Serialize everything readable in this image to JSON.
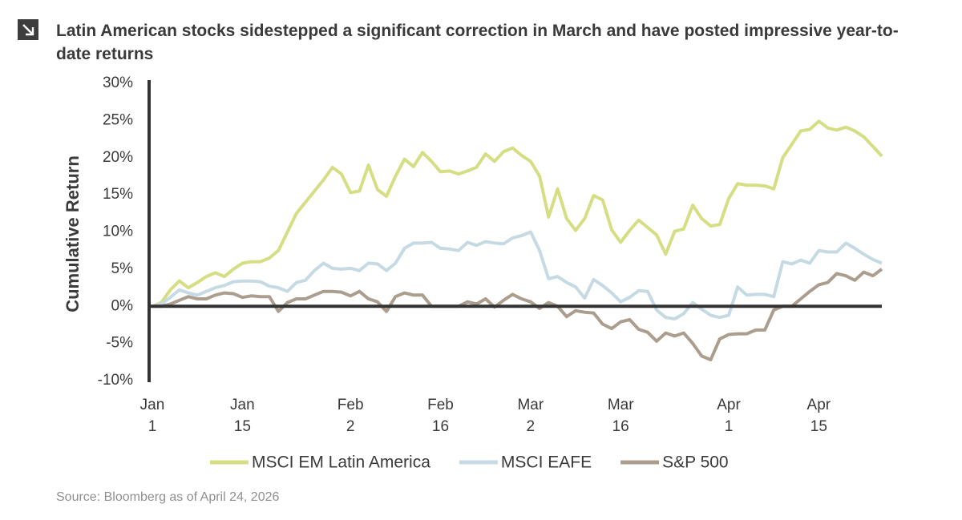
{
  "chart_data": {
    "type": "line",
    "title": "Latin American stocks sidestepped a significant correction in March and have posted impressive year-to-date returns",
    "ylabel": "Cumulative Return",
    "source": "Source: Bloomberg as of April 24, 2026",
    "legend": "bottom",
    "categories": [
      "Jan 1",
      null,
      null,
      null,
      null,
      null,
      null,
      null,
      null,
      null,
      "Jan 15",
      null,
      null,
      null,
      null,
      null,
      null,
      null,
      null,
      null,
      null,
      null,
      "Feb 2",
      null,
      null,
      null,
      null,
      null,
      null,
      null,
      null,
      null,
      "Feb 16",
      null,
      null,
      null,
      null,
      null,
      null,
      null,
      null,
      null,
      "Mar 2",
      null,
      null,
      null,
      null,
      null,
      null,
      null,
      null,
      null,
      "Mar 16",
      null,
      null,
      null,
      null,
      null,
      null,
      null,
      null,
      null,
      null,
      null,
      "Apr 1",
      null,
      null,
      null,
      null,
      null,
      null,
      null,
      null,
      null,
      "Apr 15",
      null,
      null,
      null,
      null,
      null,
      null,
      null
    ],
    "ylim": [
      -10,
      30
    ],
    "yticks": [
      {
        "value": -10,
        "label": "-10%"
      },
      {
        "value": -5,
        "label": "-5%"
      },
      {
        "value": 0,
        "label": "0%"
      },
      {
        "value": 5,
        "label": "5%"
      },
      {
        "value": 10,
        "label": "10%"
      },
      {
        "value": 15,
        "label": "15%"
      },
      {
        "value": 20,
        "label": "20%"
      },
      {
        "value": 25,
        "label": "25%"
      },
      {
        "value": 30,
        "label": "30%"
      }
    ],
    "series": [
      {
        "name": "MSCI EM Latin America",
        "color": "#d6de84",
        "values": [
          0,
          0.5,
          2.2,
          3.4,
          2.5,
          3.2,
          4.0,
          4.5,
          4.0,
          5.0,
          5.8,
          6.0,
          6.0,
          6.5,
          7.5,
          10.0,
          12.5,
          14.0,
          15.5,
          17.0,
          18.7,
          17.8,
          15.3,
          15.5,
          19.0,
          15.7,
          14.8,
          17.5,
          19.8,
          18.8,
          20.7,
          19.5,
          18.1,
          18.2,
          17.8,
          18.2,
          18.7,
          20.5,
          19.5,
          20.8,
          21.3,
          20.3,
          19.5,
          17.5,
          12.0,
          15.8,
          11.8,
          10.2,
          11.8,
          14.9,
          14.3,
          10.3,
          8.6,
          10.2,
          11.6,
          10.6,
          9.6,
          7.0,
          10.1,
          10.4,
          13.6,
          11.8,
          10.8,
          11.0,
          14.5,
          16.5,
          16.3,
          16.3,
          16.2,
          15.8,
          20.0,
          21.8,
          23.6,
          23.8,
          24.9,
          24.0,
          23.7,
          24.1,
          23.6,
          22.8,
          21.5,
          20.2
        ]
      },
      {
        "name": "MSCI EAFE",
        "color": "#c6dae4",
        "values": [
          0,
          0.3,
          1.2,
          2.2,
          1.8,
          1.5,
          2.0,
          2.5,
          2.8,
          3.3,
          3.4,
          3.4,
          3.3,
          2.7,
          2.5,
          2.0,
          3.2,
          3.5,
          4.8,
          5.8,
          5.1,
          5.0,
          5.1,
          4.8,
          5.8,
          5.7,
          4.8,
          5.8,
          7.8,
          8.5,
          8.5,
          8.6,
          7.8,
          7.7,
          7.5,
          8.6,
          8.2,
          8.7,
          8.5,
          8.4,
          9.2,
          9.5,
          10.0,
          7.5,
          3.7,
          4.0,
          3.2,
          2.6,
          1.1,
          3.6,
          2.8,
          1.8,
          0.6,
          1.2,
          2.1,
          2.0,
          -0.5,
          -1.5,
          -1.7,
          -1.0,
          0.5,
          -0.4,
          -1.2,
          -1.5,
          -1.2,
          2.6,
          1.5,
          1.6,
          1.6,
          1.3,
          6.0,
          5.7,
          6.2,
          5.8,
          7.5,
          7.3,
          7.3,
          8.5,
          7.8,
          7.0,
          6.3,
          5.8
        ]
      },
      {
        "name": "S&P 500",
        "color": "#ac9e8e",
        "values": [
          0,
          0,
          0.3,
          0.8,
          1.3,
          1.0,
          1.0,
          1.5,
          1.8,
          1.7,
          1.2,
          1.4,
          1.3,
          1.3,
          -0.7,
          0.5,
          1.0,
          1.0,
          1.5,
          2.0,
          2.0,
          1.9,
          1.4,
          2.0,
          1.0,
          0.6,
          -0.7,
          1.3,
          1.8,
          1.5,
          1.5,
          0,
          0,
          0,
          0,
          0.6,
          0.3,
          1.0,
          -0.1,
          0.8,
          1.6,
          1.0,
          0.6,
          -0.3,
          0.5,
          0,
          -1.4,
          -0.6,
          -0.8,
          -0.9,
          -2.4,
          -3.0,
          -2.1,
          -1.8,
          -3.1,
          -3.5,
          -4.7,
          -3.6,
          -4.0,
          -3.6,
          -5.0,
          -6.7,
          -7.2,
          -4.4,
          -3.8,
          -3.7,
          -3.7,
          -3.2,
          -3.2,
          -0.5,
          0,
          0,
          1.0,
          2.0,
          2.9,
          3.2,
          4.4,
          4.1,
          3.5,
          4.6,
          4.1,
          5.0
        ]
      }
    ]
  }
}
